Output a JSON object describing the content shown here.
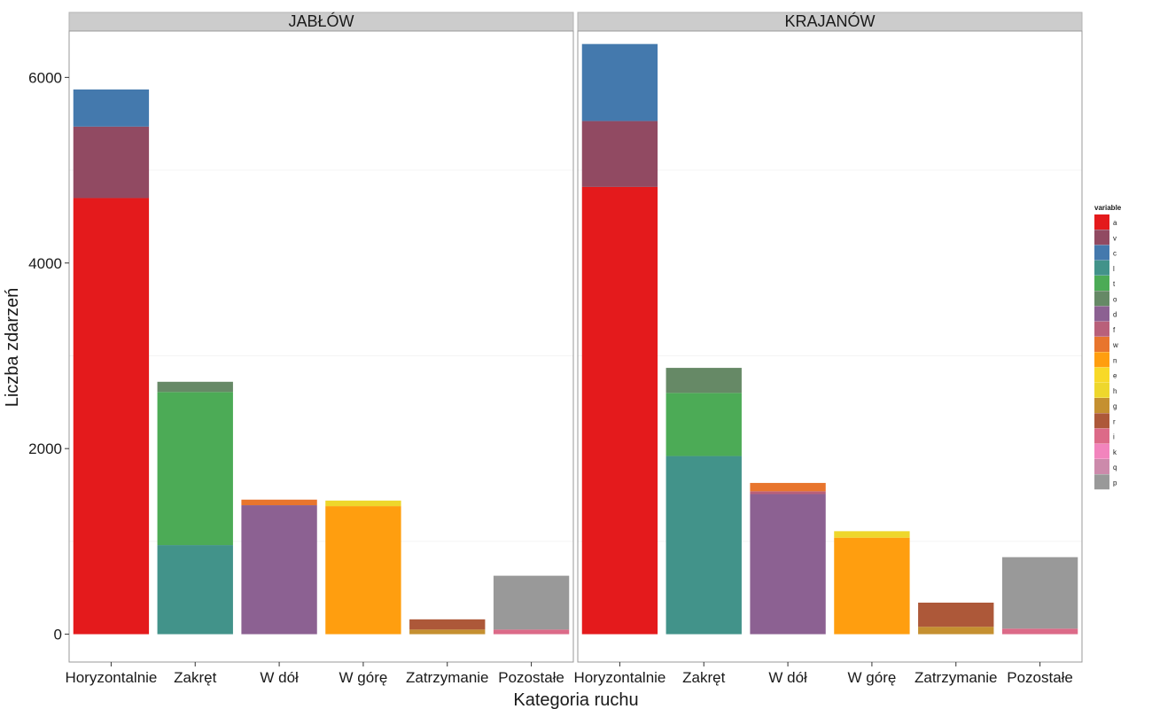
{
  "chart_data": {
    "type": "bar",
    "stacked": true,
    "faceted": true,
    "xlabel": "Kategoria ruchu",
    "ylabel": "Liczba zdarzeń",
    "ylim": [
      -300,
      6500
    ],
    "yticks": [
      0,
      2000,
      4000,
      6000
    ],
    "grid": true,
    "legend": {
      "title": "variable",
      "placement": "right",
      "keys": [
        "a",
        "v",
        "c",
        "l",
        "t",
        "o",
        "d",
        "f",
        "w",
        "n",
        "e",
        "h",
        "g",
        "r",
        "i",
        "k",
        "q",
        "p"
      ]
    },
    "colors": {
      "a": "#e41a1c",
      "v": "#914a62",
      "c": "#4479ad",
      "l": "#42938a",
      "t": "#4cab56",
      "o": "#668966",
      "d": "#8c6192",
      "f": "#b9607a",
      "w": "#e8752d",
      "n": "#ff9e0f",
      "e": "#f8d928",
      "h": "#eed72c",
      "g": "#c59030",
      "r": "#ad5839",
      "i": "#dc6a88",
      "k": "#f284bd",
      "q": "#cc8aab",
      "p": "#999999"
    },
    "categories": [
      "Horyzontalnie",
      "Zakręt",
      "W dół",
      "W górę",
      "Zatrzymanie",
      "Pozostałe"
    ],
    "facets": [
      {
        "name": "JABŁÓW",
        "bars": [
          [
            {
              "key": "a",
              "value": 4700
            },
            {
              "key": "v",
              "value": 770
            },
            {
              "key": "c",
              "value": 400
            }
          ],
          [
            {
              "key": "l",
              "value": 960
            },
            {
              "key": "t",
              "value": 1650
            },
            {
              "key": "o",
              "value": 110
            }
          ],
          [
            {
              "key": "d",
              "value": 1390
            },
            {
              "key": "w",
              "value": 60
            }
          ],
          [
            {
              "key": "n",
              "value": 1380
            },
            {
              "key": "h",
              "value": 60
            }
          ],
          [
            {
              "key": "g",
              "value": 50
            },
            {
              "key": "r",
              "value": 110
            }
          ],
          [
            {
              "key": "i",
              "value": 50
            },
            {
              "key": "p",
              "value": 580
            }
          ]
        ]
      },
      {
        "name": "KRAJANÓW",
        "bars": [
          [
            {
              "key": "a",
              "value": 4820
            },
            {
              "key": "v",
              "value": 710
            },
            {
              "key": "c",
              "value": 830
            }
          ],
          [
            {
              "key": "l",
              "value": 1920
            },
            {
              "key": "t",
              "value": 680
            },
            {
              "key": "o",
              "value": 270
            }
          ],
          [
            {
              "key": "d",
              "value": 1510
            },
            {
              "key": "f",
              "value": 30
            },
            {
              "key": "w",
              "value": 90
            }
          ],
          [
            {
              "key": "n",
              "value": 1040
            },
            {
              "key": "h",
              "value": 70
            }
          ],
          [
            {
              "key": "g",
              "value": 80
            },
            {
              "key": "r",
              "value": 260
            }
          ],
          [
            {
              "key": "i",
              "value": 60
            },
            {
              "key": "p",
              "value": 770
            }
          ]
        ]
      }
    ]
  }
}
